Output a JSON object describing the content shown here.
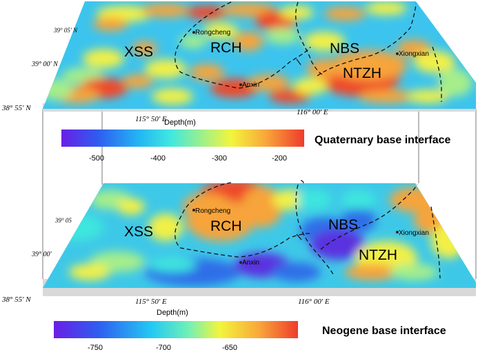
{
  "colors": {
    "cb_stops": [
      "#6a1ee6",
      "#2f5cf0",
      "#23b6f3",
      "#3fe8e0",
      "#9ef08a",
      "#f3f53c",
      "#f8a83a",
      "#ef3b2c"
    ],
    "quat_base": "#3cc4ee",
    "neo_base": "#3ec8e8",
    "base_slab": "#d9d9d9",
    "low_blue": "#3a57d8"
  },
  "panels": {
    "quaternary": {
      "title": "Quaternary base interface",
      "colorbar": {
        "label": "Depth(m)",
        "ticks": [
          "-500",
          "-400",
          "-300",
          "-200"
        ]
      },
      "lat_labels": [
        "39° 05' N",
        "39° 00' N",
        "38° 55' N"
      ],
      "lon_labels": [
        "115° 50' E",
        "116° 00' E"
      ],
      "regions": [
        "XSS",
        "RCH",
        "NBS",
        "NTZH"
      ],
      "towns": [
        "Rongcheng",
        "Anxin",
        "Xiongxian"
      ]
    },
    "neogene": {
      "title": "Neogene base interface",
      "colorbar": {
        "label": "Depth(m)",
        "ticks": [
          "-750",
          "-700",
          "-650"
        ]
      },
      "lat_labels": [
        "39° 05",
        "39° 00'",
        "38° 55' N"
      ],
      "lon_labels": [
        "115° 50' E",
        "116° 00' E"
      ],
      "regions": [
        "XSS",
        "RCH",
        "NBS",
        "NTZH"
      ],
      "towns": [
        "Rongcheng",
        "Anxin",
        "Xiongxian"
      ]
    }
  }
}
